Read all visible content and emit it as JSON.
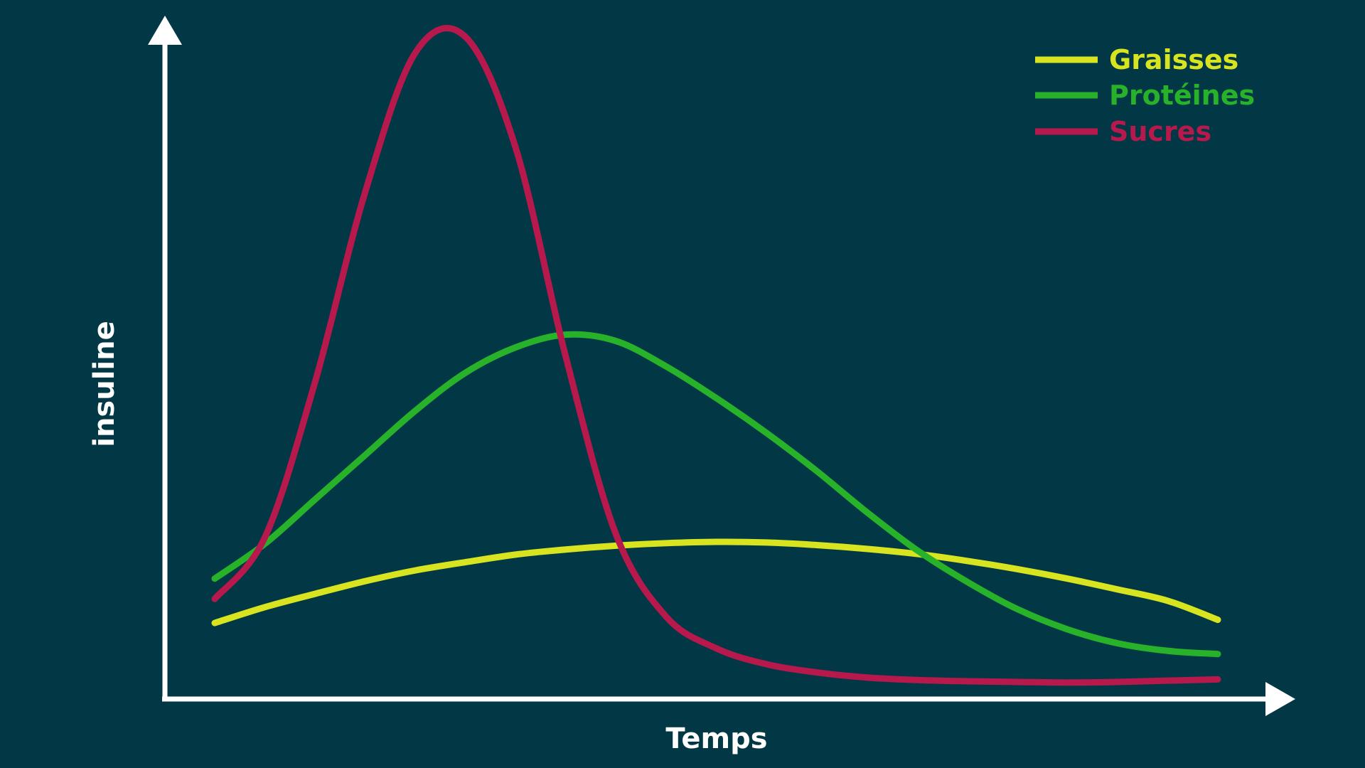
{
  "chart_data": {
    "type": "line",
    "title": "",
    "xlabel": "Temps",
    "ylabel": "insuline",
    "xlim": [
      0,
      10
    ],
    "ylim": [
      0,
      10
    ],
    "x": [
      0,
      0.5,
      1,
      1.5,
      2,
      2.5,
      3,
      3.5,
      4,
      4.5,
      5,
      5.5,
      6,
      6.5,
      7,
      7.5,
      8,
      8.5,
      9,
      9.5,
      10
    ],
    "series": [
      {
        "name": "Graisses",
        "color": "#d7e41f",
        "values": [
          1.2,
          1.45,
          1.66,
          1.86,
          2.03,
          2.16,
          2.28,
          2.36,
          2.42,
          2.46,
          2.48,
          2.47,
          2.43,
          2.37,
          2.29,
          2.18,
          2.05,
          1.9,
          1.73,
          1.55,
          1.25
        ]
      },
      {
        "name": "Protéines",
        "color": "#28b22a",
        "values": [
          1.9,
          2.45,
          3.15,
          3.85,
          4.55,
          5.15,
          5.55,
          5.75,
          5.65,
          5.25,
          4.75,
          4.2,
          3.6,
          2.95,
          2.35,
          1.85,
          1.42,
          1.1,
          0.88,
          0.76,
          0.71
        ]
      },
      {
        "name": "Sucres",
        "color": "#b8194c",
        "values": [
          1.58,
          2.55,
          5.0,
          8.0,
          10.2,
          10.45,
          8.7,
          5.4,
          2.6,
          1.3,
          0.8,
          0.55,
          0.42,
          0.34,
          0.3,
          0.28,
          0.27,
          0.26,
          0.27,
          0.29,
          0.31
        ]
      }
    ],
    "grid": false,
    "legend_position": "top-right"
  }
}
